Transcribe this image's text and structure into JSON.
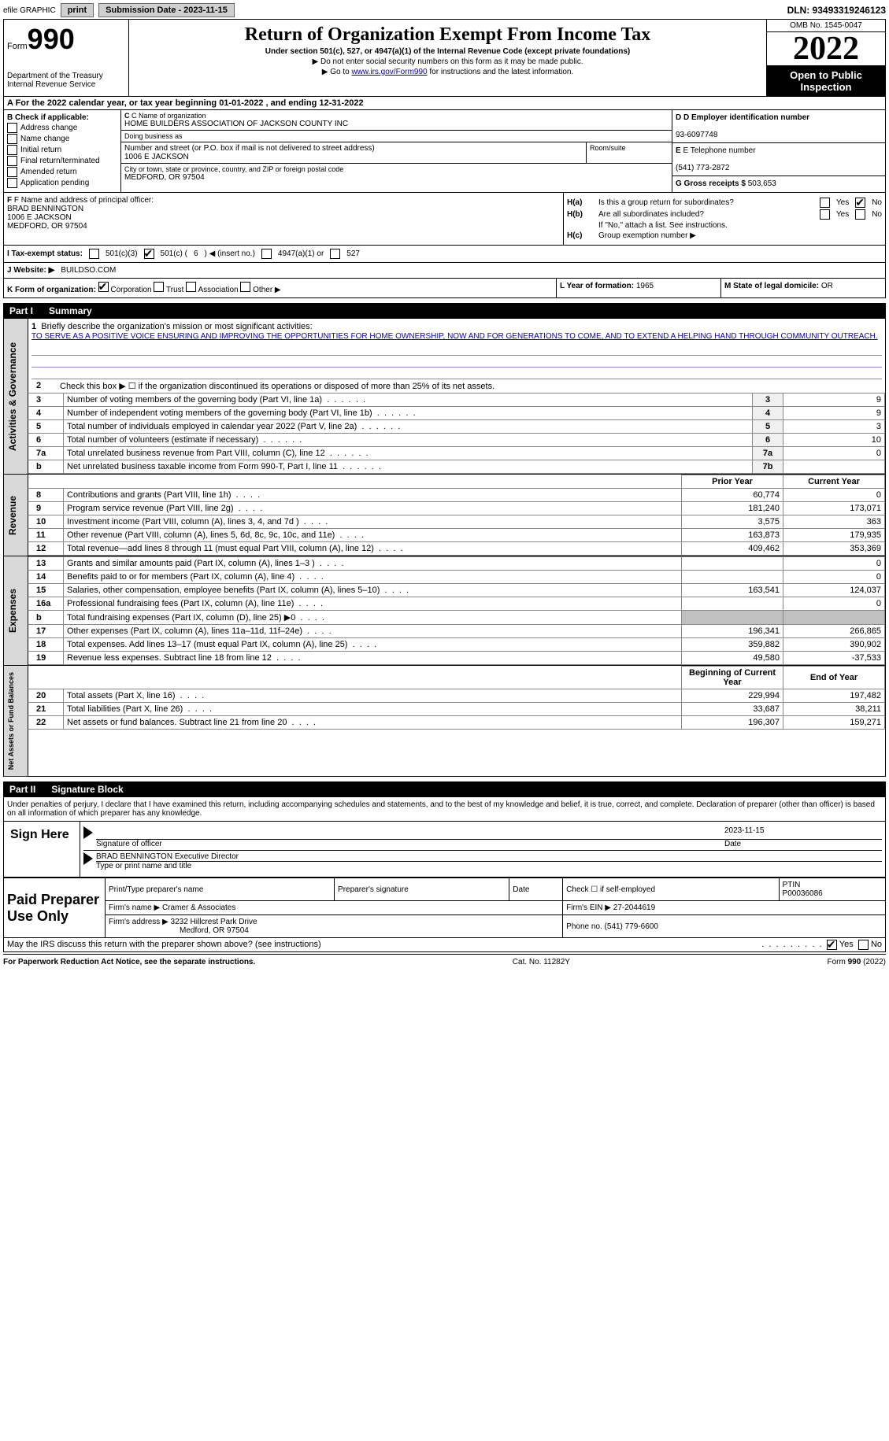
{
  "topbar": {
    "efile": "efile GRAPHIC",
    "print": "print",
    "sub_label": "Submission Date - 2023-11-15",
    "dln": "DLN: 93493319246123"
  },
  "header": {
    "form_label": "Form",
    "form_num": "990",
    "dept": "Department of the Treasury\nInternal Revenue Service",
    "title": "Return of Organization Exempt From Income Tax",
    "sub1": "Under section 501(c), 527, or 4947(a)(1) of the Internal Revenue Code (except private foundations)",
    "sub2": "▶ Do not enter social security numbers on this form as it may be made public.",
    "sub3_pre": "▶ Go to ",
    "sub3_link": "www.irs.gov/Form990",
    "sub3_post": " for instructions and the latest information.",
    "omb": "OMB No. 1545-0047",
    "year": "2022",
    "inspect": "Open to Public Inspection"
  },
  "row_a": "A For the 2022 calendar year, or tax year beginning 01-01-2022    , and ending 12-31-2022",
  "col_b": {
    "hdr": "B Check if applicable:",
    "items": [
      "Address change",
      "Name change",
      "Initial return",
      "Final return/terminated",
      "Amended return",
      "Application pending"
    ]
  },
  "col_c": {
    "name_lbl": "C Name of organization",
    "name": "HOME BUILDERS ASSOCIATION OF JACKSON COUNTY INC",
    "dba_lbl": "Doing business as",
    "dba": "",
    "addr_lbl": "Number and street (or P.O. box if mail is not delivered to street address)",
    "addr": "1006 E JACKSON",
    "room_lbl": "Room/suite",
    "city_lbl": "City or town, state or province, country, and ZIP or foreign postal code",
    "city": "MEDFORD, OR  97504"
  },
  "col_de": {
    "d_lbl": "D Employer identification number",
    "d_val": "93-6097748",
    "e_lbl": "E Telephone number",
    "e_val": "(541) 773-2872",
    "g_lbl": "G Gross receipts $",
    "g_val": "503,653"
  },
  "col_f": {
    "lbl": "F Name and address of principal officer:",
    "name": "BRAD BENNINGTON",
    "addr1": "1006 E JACKSON",
    "addr2": "MEDFORD, OR  97504"
  },
  "col_h": {
    "a_lbl": "H(a)",
    "a_txt": "Is this a group return for subordinates?",
    "b_lbl": "H(b)",
    "b_txt": "Are all subordinates included?",
    "b_note": "If \"No,\" attach a list. See instructions.",
    "c_lbl": "H(c)",
    "c_txt": "Group exemption number ▶",
    "yes": "Yes",
    "no": "No"
  },
  "row_i": {
    "lbl": "I  Tax-exempt status:",
    "opt1": "501(c)(3)",
    "opt2_pre": "501(c) (",
    "opt2_num": "6",
    "opt2_post": ") ◀ (insert no.)",
    "opt3": "4947(a)(1) or",
    "opt4": "527"
  },
  "row_j": {
    "lbl": "J  Website: ▶",
    "val": "BUILDSO.COM"
  },
  "row_k": {
    "lbl": "K Form of organization:",
    "opts": [
      "Corporation",
      "Trust",
      "Association",
      "Other ▶"
    ],
    "l_lbl": "L Year of formation:",
    "l_val": "1965",
    "m_lbl": "M State of legal domicile:",
    "m_val": "OR"
  },
  "part1": {
    "hdr": "Part I",
    "title": "Summary",
    "vtab1": "Activities & Governance",
    "vtab2": "Revenue",
    "vtab3": "Expenses",
    "vtab4": "Net Assets or Fund Balances",
    "line1_lbl": "1",
    "line1_txt": "Briefly describe the organization's mission or most significant activities:",
    "line1_mission": "TO SERVE AS A POSITIVE VOICE ENSURING AND IMPROVING THE OPPORTUNITIES FOR HOME OWNERSHIP, NOW AND FOR GENERATIONS TO COME, AND TO EXTEND A HELPING HAND THROUGH COMMUNITY OUTREACH.",
    "line2_txt": "Check this box ▶ ☐ if the organization discontinued its operations or disposed of more than 25% of its net assets.",
    "lines_gov": [
      {
        "n": "3",
        "txt": "Number of voting members of the governing body (Part VI, line 1a)",
        "box": "3",
        "val": "9"
      },
      {
        "n": "4",
        "txt": "Number of independent voting members of the governing body (Part VI, line 1b)",
        "box": "4",
        "val": "9"
      },
      {
        "n": "5",
        "txt": "Total number of individuals employed in calendar year 2022 (Part V, line 2a)",
        "box": "5",
        "val": "3"
      },
      {
        "n": "6",
        "txt": "Total number of volunteers (estimate if necessary)",
        "box": "6",
        "val": "10"
      },
      {
        "n": "7a",
        "txt": "Total unrelated business revenue from Part VIII, column (C), line 12",
        "box": "7a",
        "val": "0"
      },
      {
        "n": "b",
        "txt": "Net unrelated business taxable income from Form 990-T, Part I, line 11",
        "box": "7b",
        "val": ""
      }
    ],
    "col_prior": "Prior Year",
    "col_current": "Current Year",
    "lines_rev": [
      {
        "n": "8",
        "txt": "Contributions and grants (Part VIII, line 1h)",
        "p": "60,774",
        "c": "0"
      },
      {
        "n": "9",
        "txt": "Program service revenue (Part VIII, line 2g)",
        "p": "181,240",
        "c": "173,071"
      },
      {
        "n": "10",
        "txt": "Investment income (Part VIII, column (A), lines 3, 4, and 7d )",
        "p": "3,575",
        "c": "363"
      },
      {
        "n": "11",
        "txt": "Other revenue (Part VIII, column (A), lines 5, 6d, 8c, 9c, 10c, and 11e)",
        "p": "163,873",
        "c": "179,935"
      },
      {
        "n": "12",
        "txt": "Total revenue—add lines 8 through 11 (must equal Part VIII, column (A), line 12)",
        "p": "409,462",
        "c": "353,369"
      }
    ],
    "lines_exp": [
      {
        "n": "13",
        "txt": "Grants and similar amounts paid (Part IX, column (A), lines 1–3 )",
        "p": "",
        "c": "0"
      },
      {
        "n": "14",
        "txt": "Benefits paid to or for members (Part IX, column (A), line 4)",
        "p": "",
        "c": "0"
      },
      {
        "n": "15",
        "txt": "Salaries, other compensation, employee benefits (Part IX, column (A), lines 5–10)",
        "p": "163,541",
        "c": "124,037"
      },
      {
        "n": "16a",
        "txt": "Professional fundraising fees (Part IX, column (A), line 11e)",
        "p": "",
        "c": "0"
      },
      {
        "n": "b",
        "txt": "Total fundraising expenses (Part IX, column (D), line 25) ▶0",
        "p": "shade",
        "c": "shade"
      },
      {
        "n": "17",
        "txt": "Other expenses (Part IX, column (A), lines 11a–11d, 11f–24e)",
        "p": "196,341",
        "c": "266,865"
      },
      {
        "n": "18",
        "txt": "Total expenses. Add lines 13–17 (must equal Part IX, column (A), line 25)",
        "p": "359,882",
        "c": "390,902"
      },
      {
        "n": "19",
        "txt": "Revenue less expenses. Subtract line 18 from line 12",
        "p": "49,580",
        "c": "-37,533"
      }
    ],
    "col_beg": "Beginning of Current Year",
    "col_end": "End of Year",
    "lines_net": [
      {
        "n": "20",
        "txt": "Total assets (Part X, line 16)",
        "p": "229,994",
        "c": "197,482"
      },
      {
        "n": "21",
        "txt": "Total liabilities (Part X, line 26)",
        "p": "33,687",
        "c": "38,211"
      },
      {
        "n": "22",
        "txt": "Net assets or fund balances. Subtract line 21 from line 20",
        "p": "196,307",
        "c": "159,271"
      }
    ]
  },
  "part2": {
    "hdr": "Part II",
    "title": "Signature Block",
    "penalty": "Under penalties of perjury, I declare that I have examined this return, including accompanying schedules and statements, and to the best of my knowledge and belief, it is true, correct, and complete. Declaration of preparer (other than officer) is based on all information of which preparer has any knowledge.",
    "sign_here": "Sign Here",
    "sig_officer": "Signature of officer",
    "sig_date_val": "2023-11-15",
    "sig_date": "Date",
    "sig_name": "BRAD BENNINGTON Executive Director",
    "sig_name_lbl": "Type or print name and title",
    "paid": "Paid Preparer Use Only",
    "prep_name_lbl": "Print/Type preparer's name",
    "prep_sig_lbl": "Preparer's signature",
    "prep_date_lbl": "Date",
    "prep_check": "Check ☐ if self-employed",
    "ptin_lbl": "PTIN",
    "ptin": "P00036086",
    "firm_name_lbl": "Firm's name    ▶",
    "firm_name": "Cramer & Associates",
    "firm_ein_lbl": "Firm's EIN ▶",
    "firm_ein": "27-2044619",
    "firm_addr_lbl": "Firm's address ▶",
    "firm_addr1": "3232 Hillcrest Park Drive",
    "firm_addr2": "Medford, OR  97504",
    "phone_lbl": "Phone no.",
    "phone": "(541) 779-6600",
    "discuss": "May the IRS discuss this return with the preparer shown above? (see instructions)",
    "discuss_yes": "Yes",
    "discuss_no": "No"
  },
  "footer": {
    "left": "For Paperwork Reduction Act Notice, see the separate instructions.",
    "mid": "Cat. No. 11282Y",
    "right": "Form 990 (2022)"
  }
}
